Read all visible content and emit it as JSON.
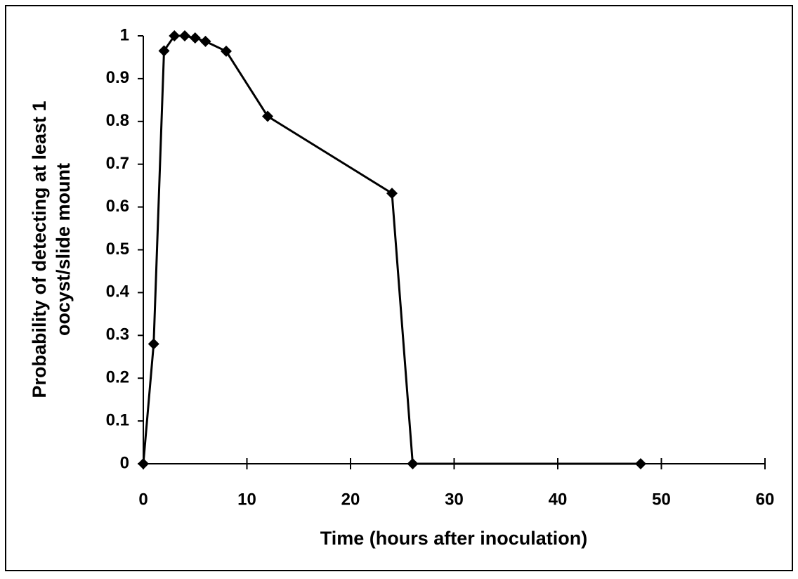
{
  "chart_data": {
    "type": "line",
    "xlabel": "Time (hours after inoculation)",
    "ylabel": [
      "Probability of detecting at least 1",
      "oocyst/slide mount"
    ],
    "x": [
      0,
      1,
      2,
      3,
      4,
      5,
      6,
      8,
      12,
      24,
      26,
      48
    ],
    "series": [
      {
        "color": "#000000",
        "marker": "diamond",
        "values": [
          0,
          0.28,
          0.965,
          1,
          1,
          0.995,
          0.987,
          0.964,
          0.812,
          0.632,
          0,
          0
        ]
      }
    ],
    "xlim": [
      0,
      60
    ],
    "xticks": [
      0,
      10,
      20,
      30,
      40,
      50,
      60
    ],
    "ylim": [
      0,
      1
    ],
    "yticks": [
      0,
      0.1,
      0.2,
      0.3,
      0.4,
      0.5,
      0.6,
      0.7,
      0.8,
      0.9,
      1
    ],
    "grid": false
  }
}
